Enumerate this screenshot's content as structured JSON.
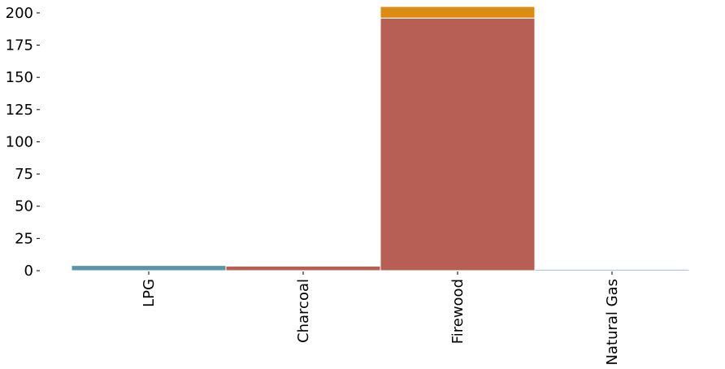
{
  "chart_data": {
    "type": "bar",
    "stacked": true,
    "categories": [
      "LPG",
      "Charcoal",
      "Firewood",
      "Natural Gas"
    ],
    "series": [
      {
        "color": "#b75f55",
        "values": [
          0,
          3.5,
          196,
          0
        ]
      },
      {
        "color": "#5994a8",
        "values": [
          4,
          0,
          0,
          1
        ]
      },
      {
        "color": "#dd8c13",
        "values": [
          0,
          0,
          9,
          0
        ]
      }
    ],
    "yticks": [
      0,
      25,
      50,
      75,
      100,
      125,
      150,
      175,
      200
    ],
    "ylim": [
      0,
      205
    ],
    "grid": false,
    "title": "",
    "xlabel": "",
    "ylabel": ""
  }
}
